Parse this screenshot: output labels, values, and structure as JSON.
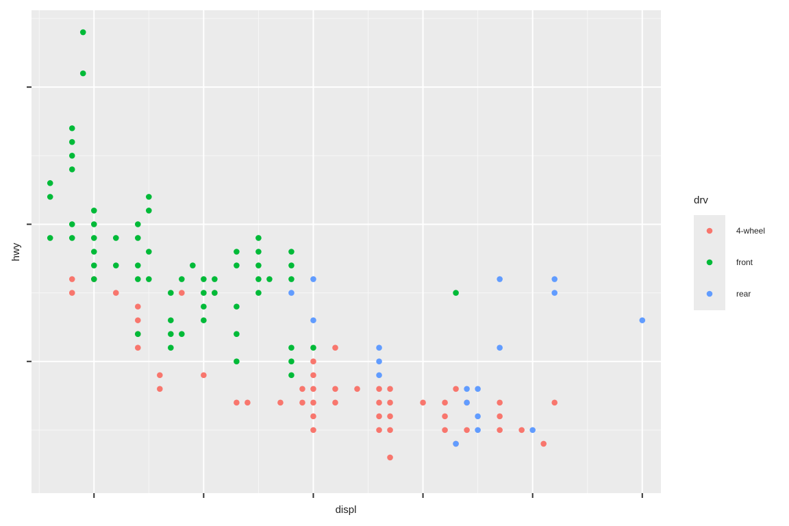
{
  "chart_data": {
    "type": "scatter",
    "title": "",
    "xlabel": "displ",
    "ylabel": "hwy",
    "xlim": [
      1.43,
      7.17
    ],
    "ylim": [
      10.4,
      45.6
    ],
    "x_breaks": [
      2,
      3,
      4,
      5,
      6,
      7
    ],
    "y_breaks": [
      20,
      30,
      40
    ],
    "tick_labels_shown": false,
    "grid": true,
    "legend": {
      "title": "drv",
      "position": "right"
    },
    "series": [
      {
        "name": "4-wheel",
        "color": "#F8766D",
        "points": [
          [
            1.8,
            26
          ],
          [
            1.8,
            25
          ],
          [
            2.0,
            26
          ],
          [
            2.2,
            25
          ],
          [
            2.4,
            24
          ],
          [
            2.4,
            23
          ],
          [
            2.4,
            22
          ],
          [
            2.4,
            21
          ],
          [
            2.6,
            19
          ],
          [
            2.6,
            18
          ],
          [
            2.8,
            25
          ],
          [
            3.0,
            19
          ],
          [
            3.1,
            25
          ],
          [
            3.3,
            17
          ],
          [
            3.4,
            17
          ],
          [
            3.7,
            17
          ],
          [
            3.9,
            18
          ],
          [
            3.9,
            17
          ],
          [
            4.0,
            20
          ],
          [
            4.0,
            19
          ],
          [
            4.0,
            18
          ],
          [
            4.0,
            17
          ],
          [
            4.0,
            16
          ],
          [
            4.0,
            15
          ],
          [
            4.2,
            21
          ],
          [
            4.2,
            18
          ],
          [
            4.2,
            17
          ],
          [
            4.4,
            18
          ],
          [
            4.6,
            18
          ],
          [
            4.6,
            17
          ],
          [
            4.6,
            16
          ],
          [
            4.6,
            15
          ],
          [
            4.7,
            18
          ],
          [
            4.7,
            17
          ],
          [
            4.7,
            16
          ],
          [
            4.7,
            15
          ],
          [
            4.7,
            13
          ],
          [
            5.0,
            17
          ],
          [
            5.2,
            17
          ],
          [
            5.2,
            16
          ],
          [
            5.2,
            15
          ],
          [
            5.3,
            18
          ],
          [
            5.3,
            14
          ],
          [
            5.4,
            15
          ],
          [
            5.4,
            17
          ],
          [
            5.7,
            17
          ],
          [
            5.7,
            16
          ],
          [
            5.7,
            15
          ],
          [
            5.9,
            15
          ],
          [
            6.1,
            14
          ],
          [
            6.2,
            17
          ]
        ]
      },
      {
        "name": "front",
        "color": "#00BA38",
        "points": [
          [
            1.6,
            32
          ],
          [
            1.6,
            33
          ],
          [
            1.6,
            29
          ],
          [
            1.8,
            34
          ],
          [
            1.8,
            35
          ],
          [
            1.8,
            36
          ],
          [
            1.8,
            37
          ],
          [
            1.8,
            29
          ],
          [
            1.8,
            30
          ],
          [
            1.9,
            41
          ],
          [
            1.9,
            44
          ],
          [
            2.0,
            26
          ],
          [
            2.0,
            27
          ],
          [
            2.0,
            28
          ],
          [
            2.0,
            29
          ],
          [
            2.0,
            30
          ],
          [
            2.0,
            31
          ],
          [
            2.2,
            27
          ],
          [
            2.2,
            29
          ],
          [
            2.4,
            22
          ],
          [
            2.4,
            26
          ],
          [
            2.4,
            27
          ],
          [
            2.4,
            29
          ],
          [
            2.4,
            30
          ],
          [
            2.5,
            26
          ],
          [
            2.5,
            31
          ],
          [
            2.5,
            32
          ],
          [
            2.5,
            28
          ],
          [
            2.7,
            22
          ],
          [
            2.7,
            23
          ],
          [
            2.7,
            21
          ],
          [
            2.7,
            25
          ],
          [
            2.8,
            22
          ],
          [
            2.8,
            26
          ],
          [
            2.9,
            27
          ],
          [
            3.0,
            24
          ],
          [
            3.0,
            25
          ],
          [
            3.0,
            26
          ],
          [
            3.0,
            23
          ],
          [
            3.1,
            26
          ],
          [
            3.1,
            25
          ],
          [
            3.3,
            28
          ],
          [
            3.3,
            27
          ],
          [
            3.3,
            22
          ],
          [
            3.3,
            24
          ],
          [
            3.3,
            20
          ],
          [
            3.5,
            29
          ],
          [
            3.5,
            28
          ],
          [
            3.5,
            27
          ],
          [
            3.5,
            26
          ],
          [
            3.5,
            25
          ],
          [
            3.6,
            26
          ],
          [
            3.8,
            28
          ],
          [
            3.8,
            27
          ],
          [
            3.8,
            26
          ],
          [
            3.8,
            21
          ],
          [
            3.8,
            20
          ],
          [
            3.8,
            19
          ],
          [
            4.0,
            21
          ],
          [
            5.3,
            25
          ]
        ]
      },
      {
        "name": "rear",
        "color": "#619CFF",
        "points": [
          [
            3.8,
            25
          ],
          [
            4.0,
            26
          ],
          [
            4.0,
            23
          ],
          [
            4.6,
            21
          ],
          [
            4.6,
            20
          ],
          [
            4.6,
            19
          ],
          [
            5.4,
            18
          ],
          [
            5.4,
            17
          ],
          [
            5.5,
            18
          ],
          [
            5.5,
            16
          ],
          [
            5.5,
            15
          ],
          [
            5.3,
            14
          ],
          [
            5.7,
            26
          ],
          [
            5.7,
            21
          ],
          [
            6.0,
            15
          ],
          [
            6.2,
            26
          ],
          [
            6.2,
            25
          ],
          [
            7.0,
            23
          ]
        ]
      }
    ]
  }
}
